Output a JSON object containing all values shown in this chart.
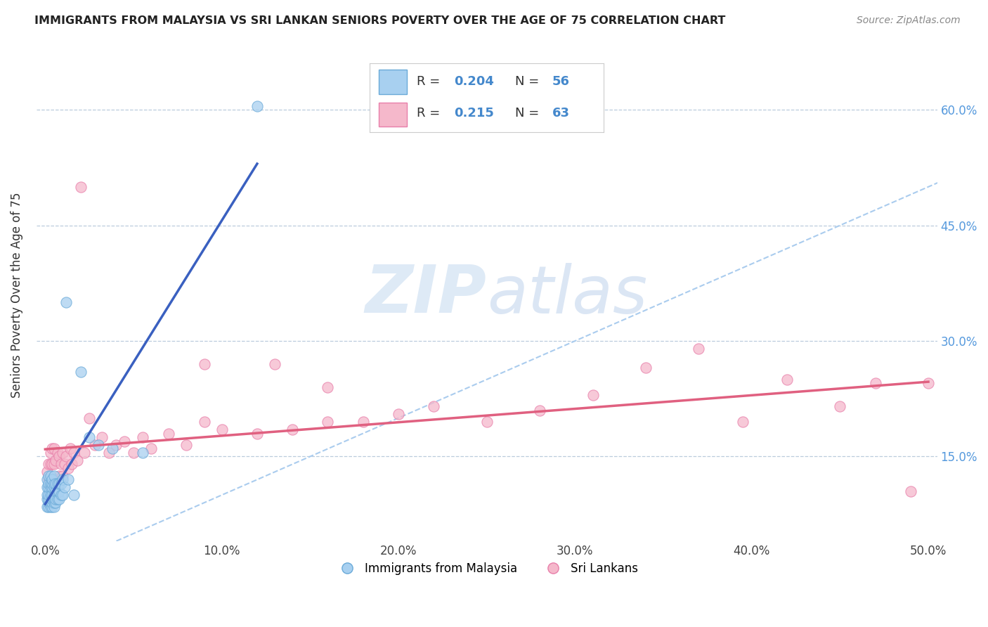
{
  "title": "IMMIGRANTS FROM MALAYSIA VS SRI LANKAN SENIORS POVERTY OVER THE AGE OF 75 CORRELATION CHART",
  "source_text": "Source: ZipAtlas.com",
  "ylabel": "Seniors Poverty Over the Age of 75",
  "xlim": [
    -0.005,
    0.505
  ],
  "ylim": [
    0.04,
    0.68
  ],
  "xtick_labels": [
    "0.0%",
    "10.0%",
    "20.0%",
    "30.0%",
    "40.0%",
    "50.0%"
  ],
  "xtick_values": [
    0.0,
    0.1,
    0.2,
    0.3,
    0.4,
    0.5
  ],
  "ytick_labels": [
    "15.0%",
    "30.0%",
    "45.0%",
    "60.0%"
  ],
  "ytick_values": [
    0.15,
    0.3,
    0.45,
    0.6
  ],
  "malaysia_color": "#A8D0F0",
  "srilanka_color": "#F5B8CB",
  "malaysia_edge": "#6AAAD8",
  "srilanka_edge": "#E87FAA",
  "trend_malaysia_color": "#3A60C0",
  "trend_srilanka_color": "#E06080",
  "diag_color": "#AACCEE",
  "watermark_zip": "ZIP",
  "watermark_atlas": "atlas",
  "legend_label_malaysia": "Immigrants from Malaysia",
  "legend_label_srilanka": "Sri Lankans",
  "malaysia_x": [
    0.001,
    0.001,
    0.001,
    0.001,
    0.001,
    0.002,
    0.002,
    0.002,
    0.002,
    0.002,
    0.002,
    0.002,
    0.003,
    0.003,
    0.003,
    0.003,
    0.003,
    0.003,
    0.004,
    0.004,
    0.004,
    0.004,
    0.004,
    0.004,
    0.004,
    0.005,
    0.005,
    0.005,
    0.005,
    0.005,
    0.005,
    0.005,
    0.006,
    0.006,
    0.006,
    0.006,
    0.007,
    0.007,
    0.007,
    0.008,
    0.008,
    0.008,
    0.009,
    0.009,
    0.01,
    0.01,
    0.011,
    0.012,
    0.013,
    0.016,
    0.02,
    0.025,
    0.03,
    0.038,
    0.055,
    0.12
  ],
  "malaysia_y": [
    0.085,
    0.095,
    0.1,
    0.11,
    0.12,
    0.085,
    0.09,
    0.095,
    0.1,
    0.11,
    0.115,
    0.125,
    0.085,
    0.09,
    0.1,
    0.11,
    0.115,
    0.125,
    0.085,
    0.09,
    0.095,
    0.1,
    0.11,
    0.115,
    0.12,
    0.085,
    0.09,
    0.095,
    0.1,
    0.11,
    0.115,
    0.125,
    0.09,
    0.095,
    0.105,
    0.115,
    0.095,
    0.105,
    0.115,
    0.095,
    0.105,
    0.115,
    0.1,
    0.115,
    0.1,
    0.12,
    0.11,
    0.35,
    0.12,
    0.1,
    0.26,
    0.175,
    0.165,
    0.16,
    0.155,
    0.605
  ],
  "srilanka_x": [
    0.001,
    0.002,
    0.002,
    0.003,
    0.003,
    0.003,
    0.004,
    0.004,
    0.004,
    0.005,
    0.005,
    0.005,
    0.006,
    0.006,
    0.007,
    0.007,
    0.008,
    0.008,
    0.009,
    0.01,
    0.01,
    0.011,
    0.012,
    0.013,
    0.014,
    0.015,
    0.016,
    0.018,
    0.02,
    0.022,
    0.025,
    0.028,
    0.032,
    0.036,
    0.04,
    0.045,
    0.05,
    0.055,
    0.06,
    0.07,
    0.08,
    0.09,
    0.1,
    0.12,
    0.13,
    0.14,
    0.16,
    0.18,
    0.2,
    0.22,
    0.25,
    0.28,
    0.31,
    0.34,
    0.37,
    0.395,
    0.42,
    0.45,
    0.47,
    0.49,
    0.5,
    0.16,
    0.09
  ],
  "srilanka_y": [
    0.13,
    0.12,
    0.14,
    0.12,
    0.14,
    0.155,
    0.12,
    0.14,
    0.16,
    0.12,
    0.14,
    0.16,
    0.12,
    0.145,
    0.12,
    0.155,
    0.125,
    0.15,
    0.14,
    0.125,
    0.155,
    0.14,
    0.15,
    0.135,
    0.16,
    0.14,
    0.155,
    0.145,
    0.5,
    0.155,
    0.2,
    0.165,
    0.175,
    0.155,
    0.165,
    0.17,
    0.155,
    0.175,
    0.16,
    0.18,
    0.165,
    0.195,
    0.185,
    0.18,
    0.27,
    0.185,
    0.195,
    0.195,
    0.205,
    0.215,
    0.195,
    0.21,
    0.23,
    0.265,
    0.29,
    0.195,
    0.25,
    0.215,
    0.245,
    0.105,
    0.245,
    0.24,
    0.27
  ]
}
